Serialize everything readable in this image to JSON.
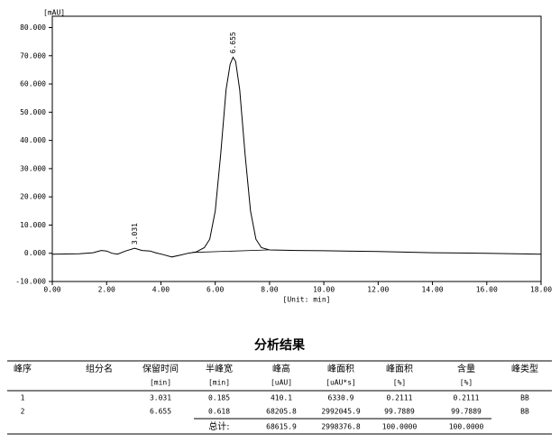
{
  "chart_data": {
    "type": "line",
    "y_label": "[mAU]",
    "x_label": "[Unit: min]",
    "x": [
      0,
      1.0,
      1.5,
      1.8,
      2.0,
      2.2,
      2.4,
      2.7,
      3.031,
      3.3,
      3.6,
      3.8,
      4.1,
      4.4,
      4.7,
      5.0,
      5.3,
      5.6,
      5.8,
      6.0,
      6.2,
      6.4,
      6.55,
      6.655,
      6.75,
      6.9,
      7.1,
      7.3,
      7.5,
      7.7,
      8.0,
      9.0,
      10.0,
      12.0,
      14.0,
      16.0,
      18.0
    ],
    "values": [
      -0.3,
      -0.2,
      0.2,
      1.0,
      0.8,
      0,
      -0.3,
      0.8,
      1.8,
      1.0,
      0.8,
      0.2,
      -0.5,
      -1.3,
      -0.7,
      0,
      0.5,
      2,
      5,
      15,
      35,
      58,
      67,
      69.5,
      68,
      58,
      35,
      15,
      5,
      2,
      1.2,
      1.0,
      0.9,
      0.6,
      0.2,
      0,
      -0.3
    ],
    "color": "#000000",
    "baseline": {
      "x": [
        5.15,
        7.95
      ],
      "values": [
        0.3,
        1.2
      ]
    },
    "peak_labels": [
      3.031,
      6.655
    ],
    "xlim": [
      0,
      18
    ],
    "ylim": [
      -10,
      84
    ],
    "xticks": [
      {
        "value": 0,
        "label": "0.00"
      },
      {
        "value": 2,
        "label": "2.00"
      },
      {
        "value": 4,
        "label": "4.00"
      },
      {
        "value": 6,
        "label": "6.00"
      },
      {
        "value": 8,
        "label": "8.00"
      },
      {
        "value": 10,
        "label": "10.00"
      },
      {
        "value": 12,
        "label": "12.00"
      },
      {
        "value": 14,
        "label": "14.00"
      },
      {
        "value": 16,
        "label": "16.00"
      },
      {
        "value": 18,
        "label": "18.00"
      }
    ],
    "yticks": [
      {
        "value": -10,
        "label": "-10.000"
      },
      {
        "value": 0,
        "label": "0.000"
      },
      {
        "value": 10,
        "label": "10.000"
      },
      {
        "value": 20,
        "label": "20.000"
      },
      {
        "value": 30,
        "label": "30.000"
      },
      {
        "value": 40,
        "label": "40.000"
      },
      {
        "value": 50,
        "label": "50.000"
      },
      {
        "value": 60,
        "label": "60.000"
      },
      {
        "value": 70,
        "label": "70.000"
      },
      {
        "value": 80,
        "label": "80.000"
      }
    ]
  },
  "table": {
    "title": "分析结果",
    "headers": [
      "峰序",
      "组分名",
      "保留时间",
      "半峰宽",
      "峰高",
      "峰面积",
      "峰面积",
      "含量",
      "峰类型"
    ],
    "units": [
      null,
      null,
      "[min]",
      "[min]",
      "[uAU]",
      "[uAU*s]",
      "[%]",
      "[%]",
      null
    ],
    "rows": [
      [
        "1",
        null,
        "3.031",
        "0.185",
        "410.1",
        "6330.9",
        "0.2111",
        "0.2111",
        "BB"
      ],
      [
        "2",
        null,
        "6.655",
        "0.618",
        "68205.8",
        "2992045.9",
        "99.7889",
        "99.7889",
        "BB"
      ]
    ],
    "total": {
      "label": "总计:",
      "values": [
        "68615.9",
        "2998376.8",
        "100.0000",
        "100.0000"
      ]
    }
  }
}
